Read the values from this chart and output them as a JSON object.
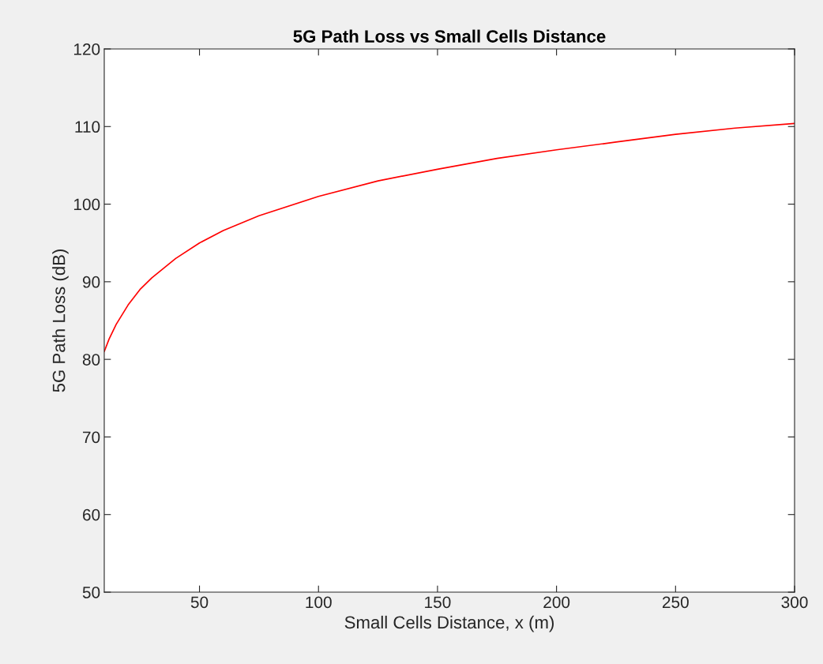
{
  "chart_data": {
    "type": "line",
    "title": "5G Path Loss vs Small Cells Distance",
    "xlabel": "Small Cells Distance, x (m)",
    "ylabel": "5G Path Loss (dB)",
    "x": [
      10,
      12,
      15,
      20,
      25,
      30,
      40,
      50,
      60,
      75,
      100,
      125,
      150,
      175,
      200,
      225,
      250,
      275,
      300
    ],
    "series": [
      {
        "color": "#ff0000",
        "values": [
          81,
          82.6,
          84.5,
          87,
          89,
          90.5,
          93,
          95,
          96.6,
          98.5,
          101,
          103,
          104.5,
          105.9,
          107,
          108,
          109,
          109.8,
          110.4
        ]
      }
    ],
    "xlim": [
      10,
      300
    ],
    "xticks": [
      50,
      100,
      150,
      200,
      250,
      300
    ],
    "ylim": [
      50,
      120
    ],
    "yticks": [
      50,
      60,
      70,
      80,
      90,
      100,
      110,
      120
    ],
    "grid": false,
    "marker": "none",
    "line_style": "solid"
  }
}
